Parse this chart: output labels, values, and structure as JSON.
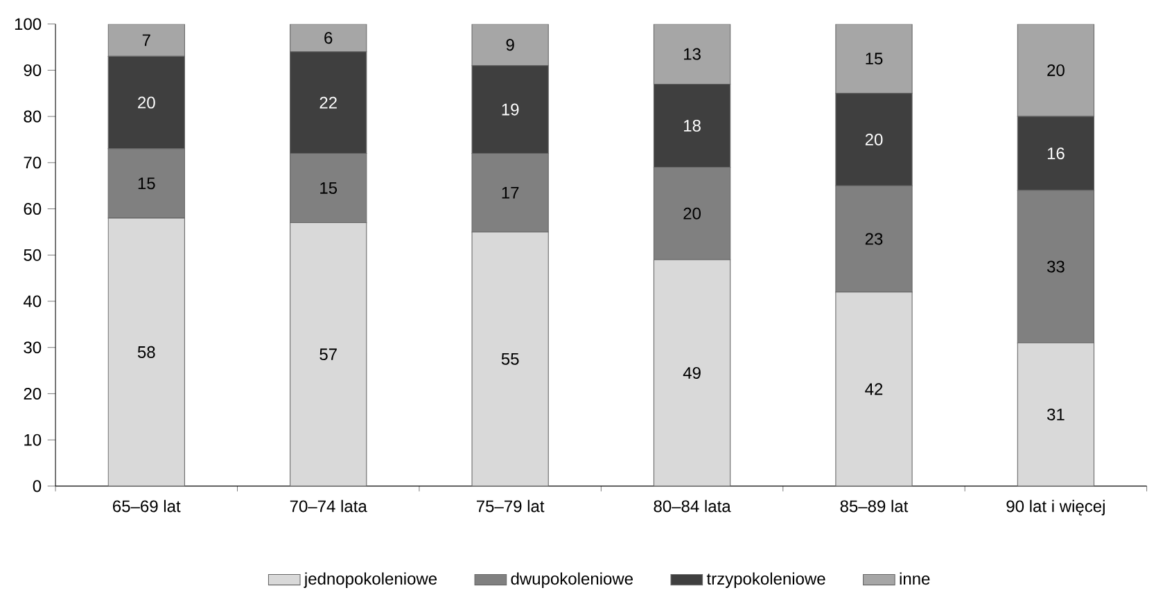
{
  "chart_data": {
    "type": "bar",
    "stacked": true,
    "data_labels": true,
    "legend": "bottom",
    "grid": false,
    "categories": [
      "65–69 lat",
      "70–74 lata",
      "75–79 lat",
      "80–84 lata",
      "85–89 lat",
      "90 lat i więcej"
    ],
    "ylim": [
      0,
      100
    ],
    "yticks": [
      0,
      10,
      20,
      30,
      40,
      50,
      60,
      70,
      80,
      90,
      100
    ],
    "series": [
      {
        "name": "jednopokoleniowe",
        "color": "#d9d9d9",
        "values": [
          58,
          57,
          55,
          49,
          42,
          31
        ]
      },
      {
        "name": "dwupokoleniowe",
        "color": "#808080",
        "values": [
          15,
          15,
          17,
          20,
          23,
          33
        ]
      },
      {
        "name": "trzypokoleniowe",
        "color": "#3f3f3f",
        "values": [
          20,
          22,
          19,
          18,
          20,
          16
        ]
      },
      {
        "name": "inne",
        "color": "#a6a6a6",
        "values": [
          7,
          6,
          9,
          13,
          15,
          20
        ]
      }
    ]
  }
}
